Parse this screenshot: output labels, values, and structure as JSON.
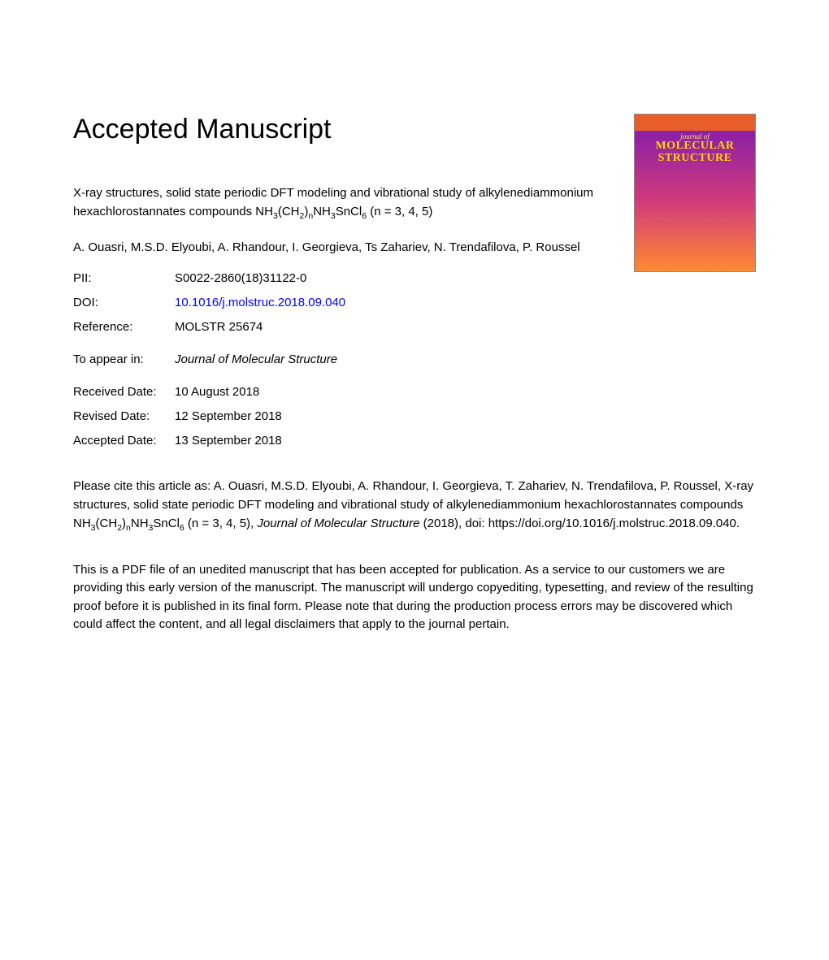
{
  "heading": "Accepted Manuscript",
  "article": {
    "title_prefix": "X-ray structures, solid state periodic DFT modeling and vibrational study of alkylenediammonium hexachlorostannates compounds NH",
    "sub1": "3",
    "mid1": "(CH",
    "sub2": "2",
    "mid2": ")",
    "sub3": "n",
    "mid3": "NH",
    "sub4": "3",
    "mid4": "SnCl",
    "sub5": "6",
    "suffix": " (n = 3, 4, 5)"
  },
  "authors": "A. Ouasri, M.S.D. Elyoubi, A. Rhandour, I. Georgieva, Ts Zahariev, N. Trendafilova, P. Roussel",
  "meta": {
    "pii_label": "PII:",
    "pii_value": "S0022-2860(18)31122-0",
    "doi_label": "DOI:",
    "doi_value": "10.1016/j.molstruc.2018.09.040",
    "ref_label": "Reference:",
    "ref_value": "MOLSTR 25674",
    "appear_label": "To appear in:",
    "appear_value": "Journal of Molecular Structure",
    "received_label": "Received Date:",
    "received_value": "10 August 2018",
    "revised_label": "Revised Date:",
    "revised_value": "12 September 2018",
    "accepted_label": "Accepted Date:",
    "accepted_value": "13 September 2018"
  },
  "cite": {
    "prefix": "Please cite this article as: A. Ouasri, M.S.D. Elyoubi, A. Rhandour, I. Georgieva, T. Zahariev, N. Trendafilova, P. Roussel, X-ray structures, solid state periodic DFT modeling and vibrational study of alkylenediammonium hexachlorostannates compounds NH",
    "sub1": "3",
    "mid1": "(CH",
    "sub2": "2",
    "mid2": ")",
    "sub3": "n",
    "mid3": "NH",
    "sub4": "3",
    "mid4": "SnCl",
    "sub5": "6",
    "suffix1": " (n = 3, 4, 5), ",
    "journal": "Journal of Molecular Structure",
    "suffix2": " (2018), doi: https://doi.org/10.1016/j.molstruc.2018.09.040."
  },
  "disclaimer": "This is a PDF file of an unedited manuscript that has been accepted for publication. As a service to our customers we are providing this early version of the manuscript. The manuscript will undergo copyediting, typesetting, and review of the resulting proof before it is published in its final form. Please note that during the production process errors may be discovered which could affect the content, and all legal disclaimers that apply to the journal pertain.",
  "cover": {
    "line1": "journal of",
    "line2": "MOLECULAR",
    "line3": "STRUCTURE"
  },
  "colors": {
    "text": "#000000",
    "link": "#0000ff",
    "background": "#ffffff"
  }
}
